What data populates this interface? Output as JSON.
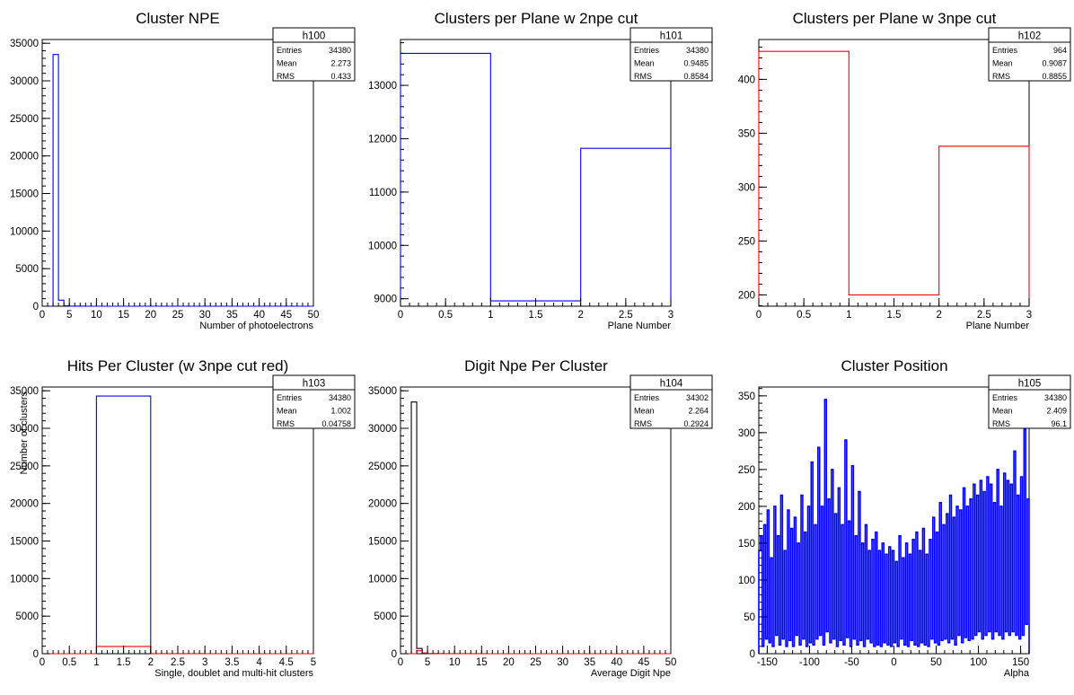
{
  "canvas_background": "#ffffff",
  "chart_data": [
    {
      "type": "bar",
      "name": "h100",
      "title": "Cluster NPE",
      "xlabel": "Number of photoelectrons",
      "ylabel": "",
      "xlim": [
        0,
        50
      ],
      "ylim": [
        0,
        35500
      ],
      "x_ticks": [
        0,
        5,
        10,
        15,
        20,
        25,
        30,
        35,
        40,
        45,
        50
      ],
      "y_ticks": [
        0,
        5000,
        10000,
        15000,
        20000,
        25000,
        30000,
        35000
      ],
      "stats": {
        "name": "h100",
        "entries": "34380",
        "mean": "2.273",
        "rms": "0.433"
      },
      "series": [
        {
          "color": "#0000ff",
          "edges": [
            0,
            1,
            2,
            3,
            4,
            5,
            6,
            7,
            8,
            9,
            10,
            11,
            12,
            13,
            14,
            15,
            16,
            17,
            18,
            19,
            20,
            21,
            22,
            23,
            24,
            25,
            26,
            27,
            28,
            29,
            30,
            31,
            32,
            33,
            34,
            35,
            36,
            37,
            38,
            39,
            40,
            41,
            42,
            43,
            44,
            45,
            46,
            47,
            48,
            49,
            50
          ],
          "values": [
            0,
            0,
            33500,
            800,
            60,
            10,
            5,
            2,
            1,
            0,
            0,
            0,
            0,
            0,
            0,
            0,
            0,
            0,
            0,
            0,
            0,
            0,
            0,
            0,
            0,
            0,
            0,
            0,
            0,
            0,
            0,
            0,
            0,
            0,
            0,
            0,
            0,
            0,
            0,
            0,
            0,
            0,
            0,
            0,
            0,
            0,
            0,
            0,
            0,
            0
          ]
        }
      ]
    },
    {
      "type": "bar",
      "name": "h101",
      "title": "Clusters per Plane w 2npe cut",
      "xlabel": "Plane Number",
      "ylabel": "",
      "xlim": [
        0,
        3
      ],
      "ylim": [
        8860,
        13860
      ],
      "x_ticks": [
        0,
        0.5,
        1,
        1.5,
        2,
        2.5,
        3
      ],
      "y_ticks": [
        9000,
        10000,
        11000,
        12000,
        13000
      ],
      "stats": {
        "name": "h101",
        "entries": "34380",
        "mean": "0.9485",
        "rms": "0.8584"
      },
      "series": [
        {
          "color": "#0000ff",
          "edges": [
            0,
            1,
            2,
            3
          ],
          "values": [
            13600,
            8960,
            11820
          ]
        }
      ]
    },
    {
      "type": "bar",
      "name": "h102",
      "title": "Clusters per Plane w 3npe cut",
      "xlabel": "Plane Number",
      "ylabel": "",
      "xlim": [
        0,
        3
      ],
      "ylim": [
        189.5,
        437
      ],
      "x_ticks": [
        0,
        0.5,
        1,
        1.5,
        2,
        2.5,
        3
      ],
      "y_ticks": [
        200,
        250,
        300,
        350,
        400
      ],
      "stats": {
        "name": "h102",
        "entries": "964",
        "mean": "0.9087",
        "rms": "0.8855"
      },
      "series": [
        {
          "color": "#ff0000",
          "edges": [
            0,
            1,
            2,
            3
          ],
          "values": [
            426,
            200,
            338
          ]
        }
      ]
    },
    {
      "type": "bar",
      "name": "h103",
      "title": "Hits Per Cluster (w 3npe cut red)",
      "xlabel": "Single, doublet and multi-hit clusters",
      "ylabel": "Number of clusters",
      "xlim": [
        0,
        5
      ],
      "ylim": [
        0,
        35500
      ],
      "x_ticks": [
        0,
        0.5,
        1,
        1.5,
        2,
        2.5,
        3,
        3.5,
        4,
        4.5,
        5
      ],
      "y_ticks": [
        0,
        5000,
        10000,
        15000,
        20000,
        25000,
        30000,
        35000
      ],
      "stats": {
        "name": "h103",
        "entries": "34380",
        "mean": "1.002",
        "rms": "0.04758"
      },
      "series": [
        {
          "color": "#0000ff",
          "edges": [
            0,
            1,
            2,
            3,
            4,
            5
          ],
          "values": [
            0,
            34300,
            0,
            0,
            0
          ]
        },
        {
          "color": "#ff0000",
          "edges": [
            0,
            1,
            2,
            3,
            4,
            5
          ],
          "values": [
            0,
            960,
            4,
            0,
            0
          ]
        }
      ]
    },
    {
      "type": "bar",
      "name": "h104",
      "title": "Digit Npe Per Cluster",
      "xlabel": "Average Digit Npe",
      "ylabel": "",
      "xlim": [
        0,
        50
      ],
      "ylim": [
        0,
        35500
      ],
      "x_ticks": [
        0,
        5,
        10,
        15,
        20,
        25,
        30,
        35,
        40,
        45,
        50
      ],
      "y_ticks": [
        0,
        5000,
        10000,
        15000,
        20000,
        25000,
        30000,
        35000
      ],
      "stats": {
        "name": "h104",
        "entries": "34302",
        "mean": "2.264",
        "rms": "0.2924"
      },
      "series": [
        {
          "color": "#000000",
          "edges": [
            0,
            1,
            2,
            3,
            4,
            5,
            6,
            7,
            8,
            9,
            10,
            11,
            12,
            13,
            14,
            15,
            16,
            17,
            18,
            19,
            20,
            21,
            22,
            23,
            24,
            25,
            26,
            27,
            28,
            29,
            30,
            31,
            32,
            33,
            34,
            35,
            36,
            37,
            38,
            39,
            40,
            41,
            42,
            43,
            44,
            45,
            46,
            47,
            48,
            49,
            50
          ],
          "values": [
            0,
            0,
            33500,
            700,
            60,
            10,
            5,
            2,
            1,
            0,
            0,
            0,
            0,
            0,
            0,
            0,
            0,
            0,
            0,
            0,
            0,
            0,
            0,
            0,
            0,
            0,
            0,
            0,
            0,
            0,
            0,
            0,
            0,
            0,
            0,
            0,
            0,
            0,
            0,
            0,
            0,
            0,
            0,
            0,
            0,
            0,
            0,
            0,
            0,
            0
          ]
        },
        {
          "color": "#ff0000",
          "edges": [
            0,
            1,
            2,
            3,
            4,
            5,
            6,
            7,
            8,
            9,
            10,
            11,
            12,
            13,
            14,
            15,
            16,
            17,
            18,
            19,
            20,
            21,
            22,
            23,
            24,
            25,
            26,
            27,
            28,
            29,
            30,
            31,
            32,
            33,
            34,
            35,
            36,
            37,
            38,
            39,
            40,
            41,
            42,
            43,
            44,
            45,
            46,
            47,
            48,
            49,
            50
          ],
          "values": [
            0,
            0,
            0,
            400,
            100,
            30,
            20,
            10,
            8,
            5,
            4,
            3,
            3,
            2,
            2,
            2,
            1,
            1,
            1,
            1,
            1,
            1,
            0,
            0,
            0,
            0,
            0,
            0,
            0,
            0,
            0,
            0,
            0,
            0,
            0,
            0,
            0,
            0,
            0,
            0,
            0,
            0,
            0,
            0,
            0,
            0,
            0,
            0,
            0,
            0
          ]
        }
      ]
    },
    {
      "type": "bar",
      "name": "h105",
      "title": "Cluster Position",
      "xlabel": "Alpha",
      "ylabel": "",
      "xlim": [
        -160,
        160
      ],
      "ylim": [
        0,
        362
      ],
      "x_ticks": [
        -150,
        -100,
        -50,
        0,
        50,
        100,
        150
      ],
      "y_ticks": [
        0,
        50,
        100,
        150,
        200,
        250,
        300,
        350
      ],
      "stats": {
        "name": "h105",
        "entries": "34380",
        "mean": "2.409",
        "rms": "96.1"
      },
      "series": [
        {
          "color": "#0000ff",
          "x_start": -160,
          "bin_width": 2,
          "values": [
            140,
            160,
            10,
            175,
            20,
            195,
            15,
            130,
            10,
            200,
            25,
            160,
            12,
            215,
            20,
            140,
            10,
            195,
            18,
            170,
            10,
            185,
            25,
            150,
            12,
            215,
            20,
            165,
            10,
            200,
            15,
            260,
            12,
            175,
            20,
            280,
            25,
            200,
            12,
            345,
            30,
            210,
            15,
            250,
            20,
            190,
            10,
            225,
            18,
            175,
            12,
            290,
            22,
            180,
            10,
            255,
            20,
            160,
            12,
            220,
            18,
            150,
            10,
            175,
            20,
            140,
            15,
            155,
            10,
            165,
            12,
            140,
            10,
            150,
            15,
            135,
            12,
            145,
            10,
            140,
            15,
            125,
            10,
            160,
            20,
            130,
            12,
            150,
            10,
            135,
            18,
            155,
            12,
            165,
            10,
            140,
            15,
            170,
            12,
            135,
            10,
            155,
            20,
            185,
            15,
            165,
            12,
            205,
            18,
            175,
            20,
            190,
            15,
            215,
            20,
            185,
            12,
            200,
            25,
            195,
            15,
            225,
            22,
            200,
            18,
            210,
            20,
            230,
            25,
            215,
            30,
            235,
            20,
            220,
            25,
            240,
            30,
            230,
            20,
            205,
            30,
            250,
            25,
            200,
            20,
            245,
            30,
            235,
            25,
            230,
            30,
            275,
            25,
            215,
            20,
            240,
            25,
            305,
            40,
            210
          ]
        }
      ]
    }
  ]
}
